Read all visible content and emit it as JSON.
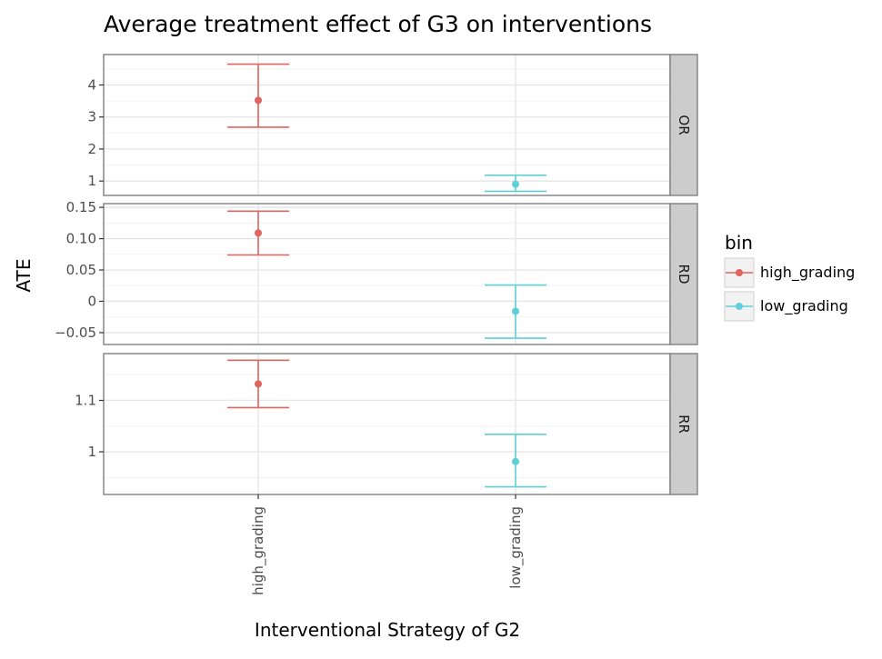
{
  "chart_data": {
    "type": "errorbar",
    "title": "Average treatment effect of G3 on interventions",
    "xlabel": "Interventional Strategy of G2",
    "ylabel": "ATE",
    "categories": [
      "high_grading",
      "low_grading"
    ],
    "legend": {
      "title": "bin",
      "placement": "right",
      "entries": [
        {
          "label": "high_grading",
          "color": "#e06460"
        },
        {
          "label": "low_grading",
          "color": "#5fd0d8"
        }
      ]
    },
    "facets": [
      {
        "strip_label": "OR",
        "ylim": [
          0.55,
          4.95
        ],
        "major_ticks": [
          1,
          2,
          3,
          4
        ],
        "tick_labels": [
          "1",
          "2",
          "3",
          "4"
        ],
        "minor_ticks": [
          1.5,
          2.5,
          3.5,
          4.5
        ],
        "points": [
          {
            "category": "high_grading",
            "bin": "high_grading",
            "estimate": 3.52,
            "lower": 2.68,
            "upper": 4.65
          },
          {
            "category": "low_grading",
            "bin": "low_grading",
            "estimate": 0.9,
            "lower": 0.68,
            "upper": 1.18
          }
        ]
      },
      {
        "strip_label": "RD",
        "ylim": [
          -0.069,
          0.156
        ],
        "major_ticks": [
          -0.05,
          0,
          0.05,
          0.1,
          0.15
        ],
        "tick_labels": [
          "−0.05",
          "0",
          "0.05",
          "0.10",
          "0.15"
        ],
        "minor_ticks": [
          -0.025,
          0.025,
          0.075,
          0.125
        ],
        "points": [
          {
            "category": "high_grading",
            "bin": "high_grading",
            "estimate": 0.109,
            "lower": 0.074,
            "upper": 0.144
          },
          {
            "category": "low_grading",
            "bin": "low_grading",
            "estimate": -0.016,
            "lower": -0.059,
            "upper": 0.026
          }
        ]
      },
      {
        "strip_label": "RR",
        "ylim": [
          0.917,
          1.191
        ],
        "major_ticks": [
          1,
          1.1
        ],
        "tick_labels": [
          "1",
          "1.1"
        ],
        "minor_ticks": [
          0.95,
          1.05,
          1.15
        ],
        "points": [
          {
            "category": "high_grading",
            "bin": "high_grading",
            "estimate": 1.132,
            "lower": 1.086,
            "upper": 1.178
          },
          {
            "category": "low_grading",
            "bin": "low_grading",
            "estimate": 0.981,
            "lower": 0.932,
            "upper": 1.034
          }
        ]
      }
    ]
  }
}
